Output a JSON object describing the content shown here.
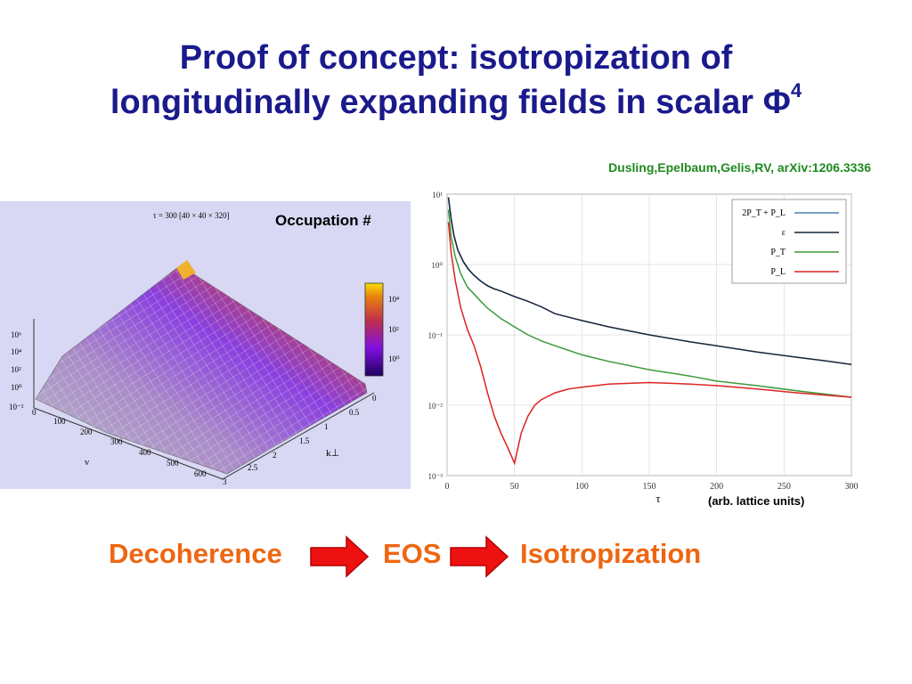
{
  "title": {
    "line1": "Proof of concept: isotropization of",
    "line2": "longitudinally expanding fields in scalar Φ",
    "sup": "4"
  },
  "citation": "Dusling,Epelbaum,Gelis,RV, arXiv:1206.3336",
  "colors": {
    "title": "#1a1a8c",
    "citation": "#1f8a1f",
    "flow_text": "#ee6612",
    "arrow": "#ee1111"
  },
  "left_figure": {
    "header": "τ = 300   [40 × 40 × 320]",
    "label": "Occupation #",
    "z_ticks": [
      "10⁶",
      "10⁴",
      "10²",
      "10⁰",
      "10⁻²"
    ],
    "nu_ticks": [
      "0",
      "100",
      "200",
      "300",
      "400",
      "500",
      "600"
    ],
    "nu_label": "ν",
    "k_ticks": [
      "0",
      "0.5",
      "1",
      "1.5",
      "2",
      "2.5",
      "3"
    ],
    "k_label": "k⊥",
    "colorbar_ticks": [
      "10⁴",
      "10²",
      "10⁰"
    ]
  },
  "chart_data": {
    "type": "line",
    "xlabel": "τ",
    "ylabel": "",
    "xlim": [
      0,
      300
    ],
    "ylim": [
      0.001,
      10
    ],
    "y_scale": "log",
    "grid": true,
    "legend_position": "top-right",
    "x_ticks": [
      0,
      50,
      100,
      150,
      200,
      250,
      300
    ],
    "x_tick_labels": [
      "0",
      "50",
      "100",
      "150",
      "200",
      "250",
      "300"
    ],
    "y_ticks": [
      10,
      1,
      0.1,
      0.01,
      0.001
    ],
    "y_tick_labels": [
      "10¹",
      "10⁰",
      "10⁻¹",
      "10⁻²",
      "10⁻³"
    ],
    "series": [
      {
        "name": "2P_T + P_L",
        "color": "#4a7fb5",
        "x": [
          1,
          3,
          5,
          8,
          12,
          16,
          20,
          25,
          30,
          35
        ],
        "y": [
          9,
          4.5,
          2.6,
          1.6,
          1.1,
          0.85,
          0.7,
          0.58,
          0.5,
          0.45
        ]
      },
      {
        "name": "ε",
        "color": "#14243a",
        "x": [
          1,
          3,
          5,
          8,
          12,
          16,
          20,
          25,
          30,
          35,
          40,
          50,
          60,
          70,
          80,
          100,
          120,
          150,
          180,
          200,
          230,
          260,
          280,
          300
        ],
        "y": [
          9,
          4.5,
          2.6,
          1.6,
          1.1,
          0.85,
          0.7,
          0.58,
          0.5,
          0.45,
          0.42,
          0.35,
          0.3,
          0.25,
          0.2,
          0.16,
          0.13,
          0.1,
          0.08,
          0.07,
          0.057,
          0.048,
          0.043,
          0.038
        ]
      },
      {
        "name": "P_T",
        "color": "#3a9a3a",
        "x": [
          1,
          3,
          6,
          10,
          15,
          20,
          25,
          30,
          40,
          50,
          60,
          70,
          80,
          100,
          120,
          150,
          180,
          200,
          230,
          260,
          300
        ],
        "y": [
          6,
          2.5,
          1.3,
          0.75,
          0.48,
          0.38,
          0.3,
          0.24,
          0.17,
          0.13,
          0.1,
          0.082,
          0.07,
          0.052,
          0.042,
          0.032,
          0.026,
          0.022,
          0.019,
          0.016,
          0.013
        ]
      },
      {
        "name": "P_L",
        "color": "#dd2222",
        "x": [
          1,
          3,
          6,
          10,
          15,
          20,
          25,
          30,
          35,
          40,
          45,
          50,
          55,
          60,
          65,
          70,
          80,
          90,
          100,
          120,
          150,
          180,
          200,
          230,
          260,
          300
        ],
        "y": [
          4,
          1.5,
          0.6,
          0.25,
          0.12,
          0.07,
          0.035,
          0.015,
          0.007,
          0.004,
          0.0025,
          0.0015,
          0.004,
          0.007,
          0.01,
          0.012,
          0.015,
          0.017,
          0.018,
          0.02,
          0.021,
          0.02,
          0.019,
          0.017,
          0.015,
          0.013
        ]
      }
    ]
  },
  "units_note": "(arb. lattice units)",
  "flow": {
    "step1": "Decoherence",
    "step2": "EOS",
    "step3": "Isotropization"
  }
}
